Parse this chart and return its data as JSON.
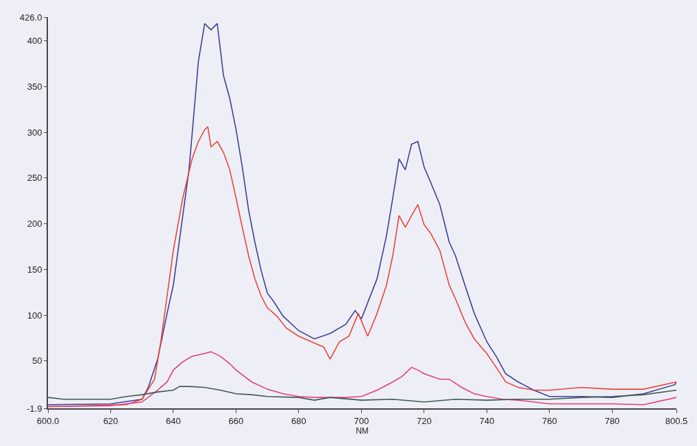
{
  "chart_data": {
    "type": "line",
    "xlabel": "NM",
    "xlim": [
      600.0,
      800.5
    ],
    "ylim": [
      -1.9,
      426.0
    ],
    "xticks": [
      {
        "value": 600.0,
        "label": "600.0"
      },
      620,
      640,
      660,
      680,
      700,
      720,
      740,
      760,
      780,
      {
        "value": 800.5,
        "label": "800.5"
      }
    ],
    "yticks": [
      {
        "value": -1.9,
        "label": "-1.9"
      },
      50,
      100,
      150,
      200,
      250,
      300,
      350,
      400,
      {
        "value": 426.0,
        "label": "426.0"
      }
    ],
    "grid": false,
    "marker": "none",
    "line_style": "solid",
    "series": [
      {
        "color": "#3e3e96",
        "x": [
          600,
          620,
          630,
          632,
          635,
          638,
          640,
          645,
          648,
          650,
          652,
          654,
          656,
          658,
          660,
          662,
          664,
          666,
          668,
          670,
          672,
          675,
          680,
          685,
          690,
          695,
          698,
          700,
          705,
          708,
          710,
          712,
          714,
          716,
          718,
          720,
          722,
          725,
          728,
          730,
          733,
          736,
          740,
          743,
          746,
          750,
          755,
          760,
          770,
          780,
          790,
          800,
          800.5
        ],
        "values": [
          2,
          3,
          8,
          21,
          52,
          102,
          133,
          259,
          378,
          419,
          412,
          419,
          362,
          337,
          303,
          262,
          215,
          180,
          149,
          124,
          115,
          99,
          83,
          74,
          80,
          90,
          105,
          96,
          140,
          187,
          228,
          271,
          259,
          287,
          290,
          262,
          246,
          221,
          180,
          165,
          133,
          102,
          71,
          55,
          36,
          27,
          18,
          11,
          11,
          10,
          14,
          24,
          27
        ]
      },
      {
        "color": "#e8443a",
        "x": [
          600,
          625,
          630,
          634,
          636,
          638,
          640,
          643,
          646,
          648,
          650,
          651,
          652,
          654,
          656,
          658,
          660,
          662,
          664,
          666,
          668,
          670,
          673,
          676,
          680,
          684,
          688,
          690,
          693,
          696,
          699,
          702,
          705,
          708,
          710,
          712,
          714,
          716,
          718,
          720,
          722,
          725,
          728,
          730,
          733,
          736,
          740,
          743,
          746,
          750,
          755,
          760,
          770,
          780,
          790,
          800.5
        ],
        "values": [
          0,
          2,
          8,
          30,
          71,
          121,
          171,
          228,
          271,
          290,
          303,
          306,
          284,
          290,
          278,
          259,
          228,
          196,
          165,
          140,
          121,
          108,
          99,
          86,
          77,
          71,
          65,
          52,
          71,
          77,
          102,
          77,
          102,
          133,
          165,
          209,
          196,
          209,
          221,
          199,
          190,
          171,
          133,
          118,
          93,
          74,
          58,
          43,
          27,
          21,
          18,
          18,
          21,
          19,
          19,
          27
        ]
      },
      {
        "color": "#e0407a",
        "x": [
          600,
          620,
          630,
          635,
          638,
          640,
          643,
          646,
          650,
          652,
          655,
          658,
          660,
          665,
          670,
          675,
          680,
          685,
          690,
          695,
          700,
          705,
          710,
          713,
          716,
          718,
          720,
          725,
          728,
          732,
          736,
          740,
          745,
          750,
          760,
          770,
          780,
          790,
          800.5
        ],
        "values": [
          0,
          1,
          5,
          18,
          27,
          40,
          49,
          55,
          58,
          60,
          55,
          47,
          40,
          27,
          19,
          14,
          11,
          10,
          10,
          10,
          11,
          18,
          27,
          33,
          43,
          40,
          36,
          30,
          30,
          21,
          14,
          11,
          8,
          7,
          3,
          3,
          3,
          2,
          10
        ]
      },
      {
        "color": "#405850",
        "x": [
          600,
          605,
          610,
          620,
          625,
          630,
          635,
          640,
          642,
          645,
          650,
          655,
          660,
          665,
          670,
          680,
          685,
          690,
          700,
          710,
          720,
          730,
          740,
          750,
          760,
          770,
          780,
          790,
          800.5
        ],
        "values": [
          10,
          8,
          8,
          8,
          11,
          13,
          16,
          18,
          22,
          22,
          21,
          18,
          14,
          13,
          11,
          10,
          7,
          10,
          7,
          8,
          5,
          8,
          7,
          8,
          8,
          10,
          11,
          13,
          18
        ]
      }
    ]
  }
}
